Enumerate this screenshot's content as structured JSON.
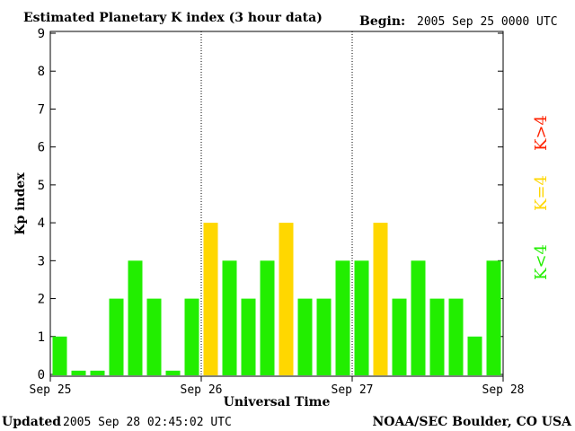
{
  "header": {
    "title": "Estimated Planetary K index (3 hour data)",
    "begin_label": "Begin:",
    "begin_value": "2005 Sep 25 0000 UTC"
  },
  "footer": {
    "updated_label": "Updated",
    "updated_value": "2005 Sep 28 02:45:02 UTC",
    "source": "NOAA/SEC Boulder, CO USA"
  },
  "legend": {
    "greater": "K>4",
    "equal": "K=4",
    "less": "K<4"
  },
  "colors": {
    "green": "#22ee00",
    "yellow": "#ffd700",
    "red": "#ff2200",
    "axis": "#000000"
  },
  "chart_data": {
    "type": "bar",
    "title": "Estimated Planetary K index (3 hour data)",
    "xlabel": "Universal Time",
    "ylabel": "Kp index",
    "ylim": [
      0,
      9
    ],
    "yticks": [
      0,
      1,
      2,
      3,
      4,
      5,
      6,
      7,
      8,
      9
    ],
    "x_tick_labels": [
      "Sep 25",
      "Sep 26",
      "Sep 27",
      "Sep 28"
    ],
    "day_separators": [
      "Sep 26",
      "Sep 27"
    ],
    "categories": [
      "Sep 25 00",
      "Sep 25 03",
      "Sep 25 06",
      "Sep 25 09",
      "Sep 25 12",
      "Sep 25 15",
      "Sep 25 18",
      "Sep 25 21",
      "Sep 26 00",
      "Sep 26 03",
      "Sep 26 06",
      "Sep 26 09",
      "Sep 26 12",
      "Sep 26 15",
      "Sep 26 18",
      "Sep 26 21",
      "Sep 27 00",
      "Sep 27 03",
      "Sep 27 06",
      "Sep 27 09",
      "Sep 27 12",
      "Sep 27 15",
      "Sep 27 18",
      "Sep 27 21"
    ],
    "values": [
      1,
      0,
      0,
      2,
      3,
      2,
      0,
      2,
      4,
      3,
      2,
      3,
      4,
      2,
      2,
      3,
      3,
      4,
      2,
      3,
      2,
      2,
      1,
      3
    ],
    "color_rule": "green if K<4, yellow if K=4, red if K>4",
    "grid": false
  }
}
